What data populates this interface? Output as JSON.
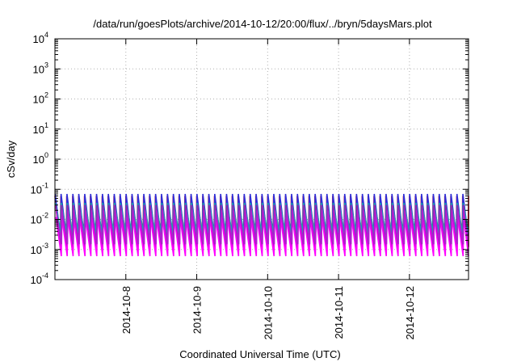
{
  "chart_data": {
    "type": "line",
    "title": "/data/run/goesPlots/archive/2014-10-12/20:00/flux/../bryn/5daysMars.plot",
    "xlabel": "Coordinated Universal Time (UTC)",
    "ylabel": "cSv/day",
    "yscale": "log",
    "ylim": [
      0.0001,
      10000
    ],
    "xlim": [
      "2014-10-07T00:00",
      "2014-10-12T20:00"
    ],
    "y_ticks": [
      {
        "base": "10",
        "exp": "-4"
      },
      {
        "base": "10",
        "exp": "-3"
      },
      {
        "base": "10",
        "exp": "-2"
      },
      {
        "base": "10",
        "exp": "-1"
      },
      {
        "base": "10",
        "exp": "0"
      },
      {
        "base": "10",
        "exp": "1"
      },
      {
        "base": "10",
        "exp": "2"
      },
      {
        "base": "10",
        "exp": "3"
      },
      {
        "base": "10",
        "exp": "4"
      }
    ],
    "x_ticks": [
      {
        "label": "2014-10-8",
        "x": "2014-10-08T00:00"
      },
      {
        "label": "2014-10-9",
        "x": "2014-10-09T00:00"
      },
      {
        "label": "2014-10-10",
        "x": "2014-10-10T00:00"
      },
      {
        "label": "2014-10-11",
        "x": "2014-10-11T00:00"
      },
      {
        "label": "2014-10-12",
        "x": "2014-10-12T00:00"
      }
    ],
    "grid": true,
    "legend": "none",
    "cycle_hours": 2,
    "series": [
      {
        "color": "#e8121e",
        "peak": 0.06,
        "trough": 0.0012
      },
      {
        "color": "#2e2ed6",
        "peak": 0.07,
        "trough": 0.0025
      },
      {
        "color": "#12a8b0",
        "peak": 0.035,
        "trough": 0.0035
      },
      {
        "color": "#9a1fb0",
        "peak": 0.03,
        "trough": 0.0009
      },
      {
        "color": "#ff00ff",
        "peak": 0.012,
        "trough": 0.0006
      },
      {
        "color": "#b020d0",
        "peak": 0.02,
        "trough": 0.0015
      }
    ]
  }
}
